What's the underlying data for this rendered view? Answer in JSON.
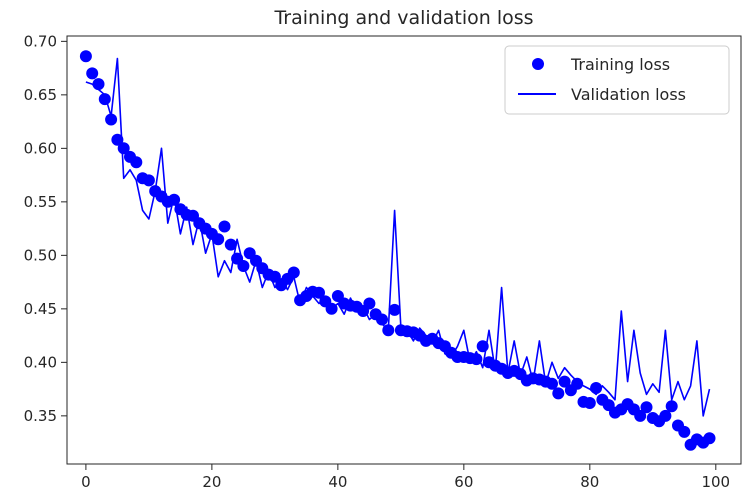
{
  "chart_data": {
    "type": "line",
    "title": "Training and validation loss",
    "xlabel": "",
    "ylabel": "",
    "xlim": [
      -3,
      104
    ],
    "ylim": [
      0.305,
      0.705
    ],
    "xticks": [
      0,
      20,
      40,
      60,
      80,
      100
    ],
    "yticks": [
      0.35,
      0.4,
      0.45,
      0.5,
      0.55,
      0.6,
      0.65,
      0.7
    ],
    "xtick_labels": [
      "0",
      "20",
      "40",
      "60",
      "80",
      "100"
    ],
    "ytick_labels": [
      "0.35",
      "0.40",
      "0.45",
      "0.50",
      "0.55",
      "0.60",
      "0.65",
      "0.70"
    ],
    "legend_position": "top-right",
    "series": [
      {
        "name": "Training loss",
        "style": "points",
        "color": "#0000ff",
        "x": [
          0,
          1,
          2,
          3,
          4,
          5,
          6,
          7,
          8,
          9,
          10,
          11,
          12,
          13,
          14,
          15,
          16,
          17,
          18,
          19,
          20,
          21,
          22,
          23,
          24,
          25,
          26,
          27,
          28,
          29,
          30,
          31,
          32,
          33,
          34,
          35,
          36,
          37,
          38,
          39,
          40,
          41,
          42,
          43,
          44,
          45,
          46,
          47,
          48,
          49,
          50,
          51,
          52,
          53,
          54,
          55,
          56,
          57,
          58,
          59,
          60,
          61,
          62,
          63,
          64,
          65,
          66,
          67,
          68,
          69,
          70,
          71,
          72,
          73,
          74,
          75,
          76,
          77,
          78,
          79,
          80,
          81,
          82,
          83,
          84,
          85,
          86,
          87,
          88,
          89,
          90,
          91,
          92,
          93,
          94,
          95,
          96,
          97,
          98,
          99
        ],
        "values": [
          0.686,
          0.67,
          0.66,
          0.646,
          0.627,
          0.608,
          0.6,
          0.592,
          0.587,
          0.572,
          0.57,
          0.56,
          0.555,
          0.55,
          0.552,
          0.543,
          0.538,
          0.537,
          0.53,
          0.525,
          0.52,
          0.515,
          0.527,
          0.51,
          0.497,
          0.49,
          0.502,
          0.495,
          0.488,
          0.482,
          0.48,
          0.472,
          0.478,
          0.484,
          0.458,
          0.462,
          0.466,
          0.465,
          0.457,
          0.45,
          0.462,
          0.455,
          0.453,
          0.452,
          0.448,
          0.455,
          0.445,
          0.44,
          0.43,
          0.449,
          0.43,
          0.429,
          0.428,
          0.425,
          0.42,
          0.422,
          0.418,
          0.415,
          0.409,
          0.405,
          0.405,
          0.404,
          0.403,
          0.415,
          0.4,
          0.397,
          0.394,
          0.39,
          0.392,
          0.389,
          0.383,
          0.385,
          0.384,
          0.382,
          0.38,
          0.371,
          0.382,
          0.374,
          0.38,
          0.363,
          0.362,
          0.376,
          0.365,
          0.36,
          0.353,
          0.356,
          0.361,
          0.356,
          0.35,
          0.358,
          0.348,
          0.345,
          0.35,
          0.359,
          0.341,
          0.335,
          0.323,
          0.328,
          0.325,
          0.329
        ]
      },
      {
        "name": "Validation loss",
        "style": "line",
        "color": "#0000ff",
        "x": [
          0,
          1,
          2,
          3,
          4,
          5,
          6,
          7,
          8,
          9,
          10,
          11,
          12,
          13,
          14,
          15,
          16,
          17,
          18,
          19,
          20,
          21,
          22,
          23,
          24,
          25,
          26,
          27,
          28,
          29,
          30,
          31,
          32,
          33,
          34,
          35,
          36,
          37,
          38,
          39,
          40,
          41,
          42,
          43,
          44,
          45,
          46,
          47,
          48,
          49,
          50,
          51,
          52,
          53,
          54,
          55,
          56,
          57,
          58,
          59,
          60,
          61,
          62,
          63,
          64,
          65,
          66,
          67,
          68,
          69,
          70,
          71,
          72,
          73,
          74,
          75,
          76,
          77,
          78,
          79,
          80,
          81,
          82,
          83,
          84,
          85,
          86,
          87,
          88,
          89,
          90,
          91,
          92,
          93,
          94,
          95,
          96,
          97,
          98,
          99
        ],
        "values": [
          0.662,
          0.66,
          0.655,
          0.65,
          0.63,
          0.684,
          0.572,
          0.58,
          0.57,
          0.542,
          0.534,
          0.56,
          0.6,
          0.53,
          0.555,
          0.52,
          0.545,
          0.51,
          0.534,
          0.502,
          0.52,
          0.48,
          0.495,
          0.484,
          0.515,
          0.49,
          0.475,
          0.495,
          0.47,
          0.485,
          0.47,
          0.478,
          0.468,
          0.48,
          0.455,
          0.47,
          0.462,
          0.455,
          0.46,
          0.45,
          0.455,
          0.445,
          0.46,
          0.448,
          0.452,
          0.44,
          0.445,
          0.436,
          0.43,
          0.542,
          0.432,
          0.43,
          0.42,
          0.432,
          0.425,
          0.418,
          0.43,
          0.408,
          0.405,
          0.415,
          0.43,
          0.4,
          0.41,
          0.395,
          0.43,
          0.392,
          0.47,
          0.39,
          0.42,
          0.388,
          0.405,
          0.382,
          0.42,
          0.38,
          0.4,
          0.385,
          0.395,
          0.388,
          0.382,
          0.378,
          0.375,
          0.37,
          0.378,
          0.372,
          0.365,
          0.448,
          0.382,
          0.43,
          0.39,
          0.37,
          0.38,
          0.372,
          0.43,
          0.365,
          0.382,
          0.365,
          0.378,
          0.42,
          0.35,
          0.375
        ]
      }
    ]
  }
}
